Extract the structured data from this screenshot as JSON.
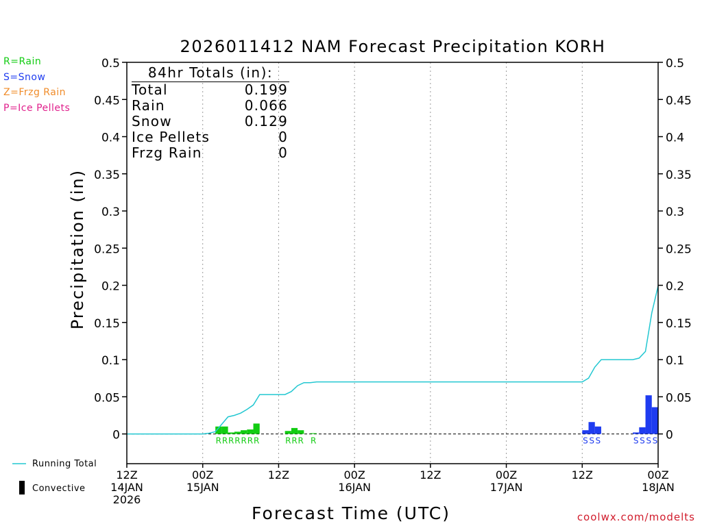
{
  "chart_data": {
    "type": "bar",
    "title": "2026011412 NAM Forecast Precipitation KORH",
    "xlabel": "Forecast Time (UTC)",
    "ylabel": "Precipitation (in)",
    "ylim": [
      -0.04,
      0.5
    ],
    "yticks": [
      "0.5",
      "0.45",
      "0.4",
      "0.35",
      "0.3",
      "0.25",
      "0.2",
      "0.15",
      "0.1",
      "0.05",
      "0"
    ],
    "ytick_values": [
      0.5,
      0.45,
      0.4,
      0.35,
      0.3,
      0.25,
      0.2,
      0.15,
      0.1,
      0.05,
      0
    ],
    "xlim_hours": [
      0,
      84
    ],
    "xticks": [
      {
        "hour": 0,
        "line1": "12Z",
        "line2": "14JAN",
        "line3": "2026"
      },
      {
        "hour": 12,
        "line1": "00Z",
        "line2": "15JAN",
        "line3": ""
      },
      {
        "hour": 24,
        "line1": "12Z",
        "line2": "",
        "line3": ""
      },
      {
        "hour": 36,
        "line1": "00Z",
        "line2": "16JAN",
        "line3": ""
      },
      {
        "hour": 48,
        "line1": "12Z",
        "line2": "",
        "line3": ""
      },
      {
        "hour": 60,
        "line1": "00Z",
        "line2": "17JAN",
        "line3": ""
      },
      {
        "hour": 72,
        "line1": "12Z",
        "line2": "",
        "line3": ""
      },
      {
        "hour": 84,
        "line1": "00Z",
        "line2": "18JAN",
        "line3": ""
      }
    ],
    "grid": "vertical-dotted",
    "bars": [
      {
        "hour": 15,
        "value": 0.01,
        "type": "R"
      },
      {
        "hour": 16,
        "value": 0.01,
        "type": "R"
      },
      {
        "hour": 17,
        "value": 0.002,
        "type": "R"
      },
      {
        "hour": 18,
        "value": 0.003,
        "type": "R"
      },
      {
        "hour": 19,
        "value": 0.005,
        "type": "R"
      },
      {
        "hour": 20,
        "value": 0.006,
        "type": "R"
      },
      {
        "hour": 21,
        "value": 0.014,
        "type": "R"
      },
      {
        "hour": 26,
        "value": 0.004,
        "type": "R"
      },
      {
        "hour": 27,
        "value": 0.008,
        "type": "R"
      },
      {
        "hour": 28,
        "value": 0.005,
        "type": "R"
      },
      {
        "hour": 30,
        "value": 0.001,
        "type": "R"
      },
      {
        "hour": 73,
        "value": 0.005,
        "type": "S"
      },
      {
        "hour": 74,
        "value": 0.016,
        "type": "S"
      },
      {
        "hour": 75,
        "value": 0.01,
        "type": "S"
      },
      {
        "hour": 81,
        "value": 0.002,
        "type": "S"
      },
      {
        "hour": 82,
        "value": 0.009,
        "type": "S"
      },
      {
        "hour": 83,
        "value": 0.052,
        "type": "S"
      },
      {
        "hour": 84,
        "value": 0.036,
        "type": "S"
      }
    ],
    "running_total": {
      "hours": [
        0,
        12,
        13,
        14,
        15,
        16,
        17,
        18,
        19,
        20,
        21,
        22,
        23,
        24,
        25,
        26,
        27,
        28,
        29,
        30,
        31,
        32,
        33,
        34,
        72,
        73,
        74,
        75,
        76,
        77,
        78,
        79,
        80,
        81,
        82,
        83,
        84
      ],
      "values": [
        0,
        0,
        0.001,
        0.003,
        0.013,
        0.023,
        0.025,
        0.028,
        0.033,
        0.039,
        0.053,
        0.053,
        0.053,
        0.053,
        0.053,
        0.057,
        0.065,
        0.069,
        0.069,
        0.07,
        0.07,
        0.07,
        0.07,
        0.07,
        0.07,
        0.075,
        0.09,
        0.1,
        0.1,
        0.1,
        0.1,
        0.1,
        0.1,
        0.102,
        0.111,
        0.163,
        0.199
      ]
    },
    "ptype_markers": [
      {
        "hour": 15,
        "label": "R"
      },
      {
        "hour": 16,
        "label": "R"
      },
      {
        "hour": 17,
        "label": "R"
      },
      {
        "hour": 18,
        "label": "R"
      },
      {
        "hour": 19,
        "label": "R"
      },
      {
        "hour": 20,
        "label": "R"
      },
      {
        "hour": 21,
        "label": "R"
      },
      {
        "hour": 26,
        "label": "R"
      },
      {
        "hour": 27,
        "label": "R"
      },
      {
        "hour": 28,
        "label": "R"
      },
      {
        "hour": 30,
        "label": "R"
      },
      {
        "hour": 73,
        "label": "S"
      },
      {
        "hour": 74,
        "label": "S"
      },
      {
        "hour": 75,
        "label": "S"
      },
      {
        "hour": 81,
        "label": "S"
      },
      {
        "hour": 82,
        "label": "S"
      },
      {
        "hour": 83,
        "label": "S"
      },
      {
        "hour": 84,
        "label": "S"
      }
    ]
  },
  "colors": {
    "rain": "#11cc11",
    "snow": "#1f3cf0",
    "frzg_rain": "#f08c2a",
    "ice_pellets": "#e0208c",
    "running_total": "#22c7d1",
    "credit": "#d11b2b"
  },
  "ptype_legend": [
    {
      "label": "R=Rain",
      "color": "#11cc11"
    },
    {
      "label": "S=Snow",
      "color": "#1f3cf0"
    },
    {
      "label": "Z=Frzg Rain",
      "color": "#f08c2a"
    },
    {
      "label": "P=Ice Pellets",
      "color": "#e0208c"
    }
  ],
  "totals": {
    "title": "84hr Totals (in):",
    "rows": [
      {
        "label": "Total",
        "value": "0.199"
      },
      {
        "label": "Rain",
        "value": "0.066"
      },
      {
        "label": "Snow",
        "value": "0.129"
      },
      {
        "label": "Ice Pellets",
        "value": "0"
      },
      {
        "label": "Frzg Rain",
        "value": "0"
      }
    ]
  },
  "series_legend": {
    "running_total": "Running Total",
    "convective": "Convective"
  },
  "credit": "coolwx.com/modelts"
}
